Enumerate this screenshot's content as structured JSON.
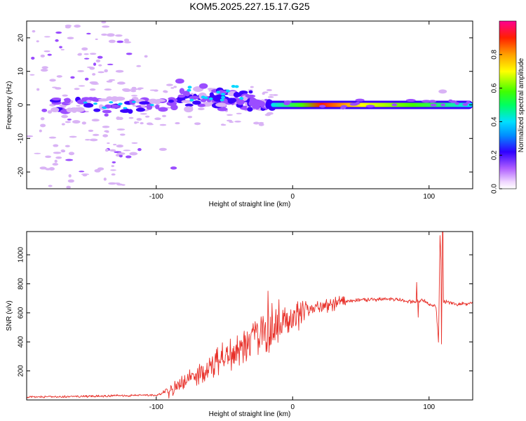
{
  "title": "KOM5.2025.227.15.17.G25",
  "colors": {
    "axis": "#000000",
    "snr_line": "#e8312a",
    "blob_light": "#d9b3f5",
    "blob_mid": "#9b4dff",
    "blob_dark": "#3b00ff"
  },
  "chart_data": [
    {
      "name": "spectrogram",
      "type": "heatmap",
      "xlabel": "Height of straight line (km)",
      "ylabel": "Frequency (Hz)",
      "xlim": [
        -195,
        132
      ],
      "ylim": [
        -25,
        25
      ],
      "x_ticks": [
        -100,
        0,
        100
      ],
      "x_tick_labels": [
        "-100",
        "0",
        "100"
      ],
      "y_ticks": [
        -20,
        -10,
        0,
        10,
        20
      ],
      "y_tick_labels": [
        "-20",
        "-10",
        "0",
        "10",
        "20"
      ],
      "colorbar": {
        "label": "Normalized spectral amplitude",
        "range": [
          0,
          1
        ],
        "ticks": [
          0,
          0.2,
          0.4,
          0.6,
          0.8
        ],
        "tick_labels": [
          "0.0",
          "0.2",
          "0.4",
          "0.6",
          "0.8"
        ]
      },
      "features": [
        {
          "name": "band-right",
          "x_range": [
            -20,
            132
          ],
          "freq": 0,
          "amplitude": 0.9
        },
        {
          "name": "cluster-center",
          "x_range": [
            -90,
            -30
          ],
          "freq_range": [
            0,
            8
          ],
          "amplitude": 0.3
        },
        {
          "name": "cluster-left",
          "x_range": [
            -175,
            -95
          ],
          "freq_range": [
            -3,
            3
          ],
          "amplitude": 0.2
        },
        {
          "name": "noise-left",
          "x_range": [
            -195,
            -120
          ],
          "freq_range": [
            -25,
            25
          ],
          "amplitude": 0.05
        }
      ]
    },
    {
      "name": "snr",
      "type": "line",
      "xlabel": "Height of straight line (km)",
      "ylabel": "SNR (v/v)",
      "xlim": [
        -195,
        132
      ],
      "ylim": [
        0,
        1160
      ],
      "x_ticks": [
        -100,
        0,
        100
      ],
      "x_tick_labels": [
        "-100",
        "0",
        "100"
      ],
      "y_ticks": [
        200,
        400,
        600,
        800,
        1000
      ],
      "y_tick_labels": [
        "200",
        "400",
        "600",
        "800",
        "1000"
      ],
      "series": [
        {
          "name": "SNR",
          "x": [
            -195,
            -150,
            -120,
            -100,
            -90,
            -80,
            -70,
            -60,
            -50,
            -40,
            -30,
            -25,
            -20,
            -15,
            -10,
            -5,
            0,
            10,
            20,
            30,
            40,
            50,
            60,
            70,
            80,
            85,
            90,
            95,
            100,
            105,
            107,
            108,
            110,
            115,
            120,
            132
          ],
          "values": [
            20,
            25,
            30,
            35,
            60,
            110,
            170,
            240,
            300,
            340,
            390,
            430,
            470,
            500,
            520,
            540,
            560,
            610,
            640,
            660,
            680,
            690,
            690,
            695,
            690,
            680,
            670,
            690,
            660,
            650,
            400,
            1130,
            680,
            670,
            660,
            665
          ],
          "spikes": [
            {
              "x": -18,
              "value": 750
            },
            {
              "x": 110,
              "value": 1160
            },
            {
              "x": 109,
              "value": 385
            },
            {
              "x": 91,
              "value": 810
            },
            {
              "x": 92,
              "value": 570
            }
          ]
        }
      ]
    }
  ]
}
